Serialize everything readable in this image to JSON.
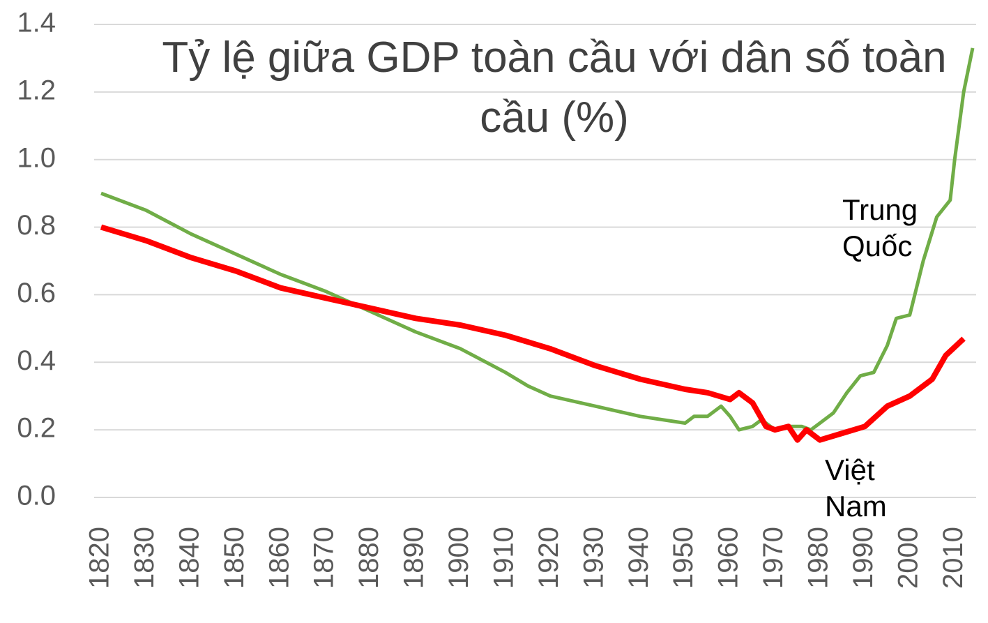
{
  "chart_data": {
    "type": "line",
    "title": "Tỷ lệ giữa GDP toàn cầu với dân số toàn cầu (%)",
    "xlim": [
      1820,
      2014
    ],
    "xticks": [
      1820,
      1830,
      1840,
      1850,
      1860,
      1870,
      1880,
      1890,
      1900,
      1910,
      1920,
      1930,
      1940,
      1950,
      1960,
      1970,
      1980,
      1990,
      2000,
      2010
    ],
    "ylim": [
      0,
      1.4
    ],
    "yticks": [
      {
        "value": 0,
        "label": "0.0"
      },
      0.2,
      0.4,
      0.6,
      0.8,
      {
        "value": 1,
        "label": "1.0"
      },
      1.2,
      1.4
    ],
    "grid": true,
    "series": [
      {
        "name": "Trung Quốc",
        "color": "#70ad47",
        "x": [
          1820,
          1830,
          1840,
          1850,
          1860,
          1870,
          1880,
          1890,
          1900,
          1910,
          1915,
          1920,
          1930,
          1940,
          1950,
          1952,
          1955,
          1958,
          1960,
          1962,
          1965,
          1967,
          1970,
          1973,
          1976,
          1978,
          1980,
          1983,
          1986,
          1989,
          1992,
          1995,
          1997,
          2000,
          2003,
          2006,
          2009,
          2010,
          2012,
          2014
        ],
        "values": [
          0.9,
          0.85,
          0.78,
          0.72,
          0.66,
          0.61,
          0.55,
          0.49,
          0.44,
          0.37,
          0.33,
          0.3,
          0.27,
          0.24,
          0.22,
          0.24,
          0.24,
          0.27,
          0.24,
          0.2,
          0.21,
          0.23,
          0.2,
          0.21,
          0.21,
          0.2,
          0.22,
          0.25,
          0.31,
          0.36,
          0.37,
          0.45,
          0.53,
          0.54,
          0.7,
          0.83,
          0.88,
          1.0,
          1.2,
          1.33
        ]
      },
      {
        "name": "Việt Nam",
        "color": "#ff0000",
        "x": [
          1820,
          1830,
          1840,
          1850,
          1860,
          1870,
          1880,
          1890,
          1900,
          1910,
          1920,
          1930,
          1940,
          1950,
          1955,
          1960,
          1962,
          1965,
          1968,
          1970,
          1973,
          1975,
          1977,
          1980,
          1985,
          1990,
          1995,
          2000,
          2005,
          2008,
          2012
        ],
        "values": [
          0.8,
          0.76,
          0.71,
          0.67,
          0.62,
          0.59,
          0.56,
          0.53,
          0.51,
          0.48,
          0.44,
          0.39,
          0.35,
          0.32,
          0.31,
          0.29,
          0.31,
          0.28,
          0.21,
          0.2,
          0.21,
          0.17,
          0.2,
          0.17,
          0.19,
          0.21,
          0.27,
          0.3,
          0.35,
          0.42,
          0.47
        ]
      }
    ]
  }
}
